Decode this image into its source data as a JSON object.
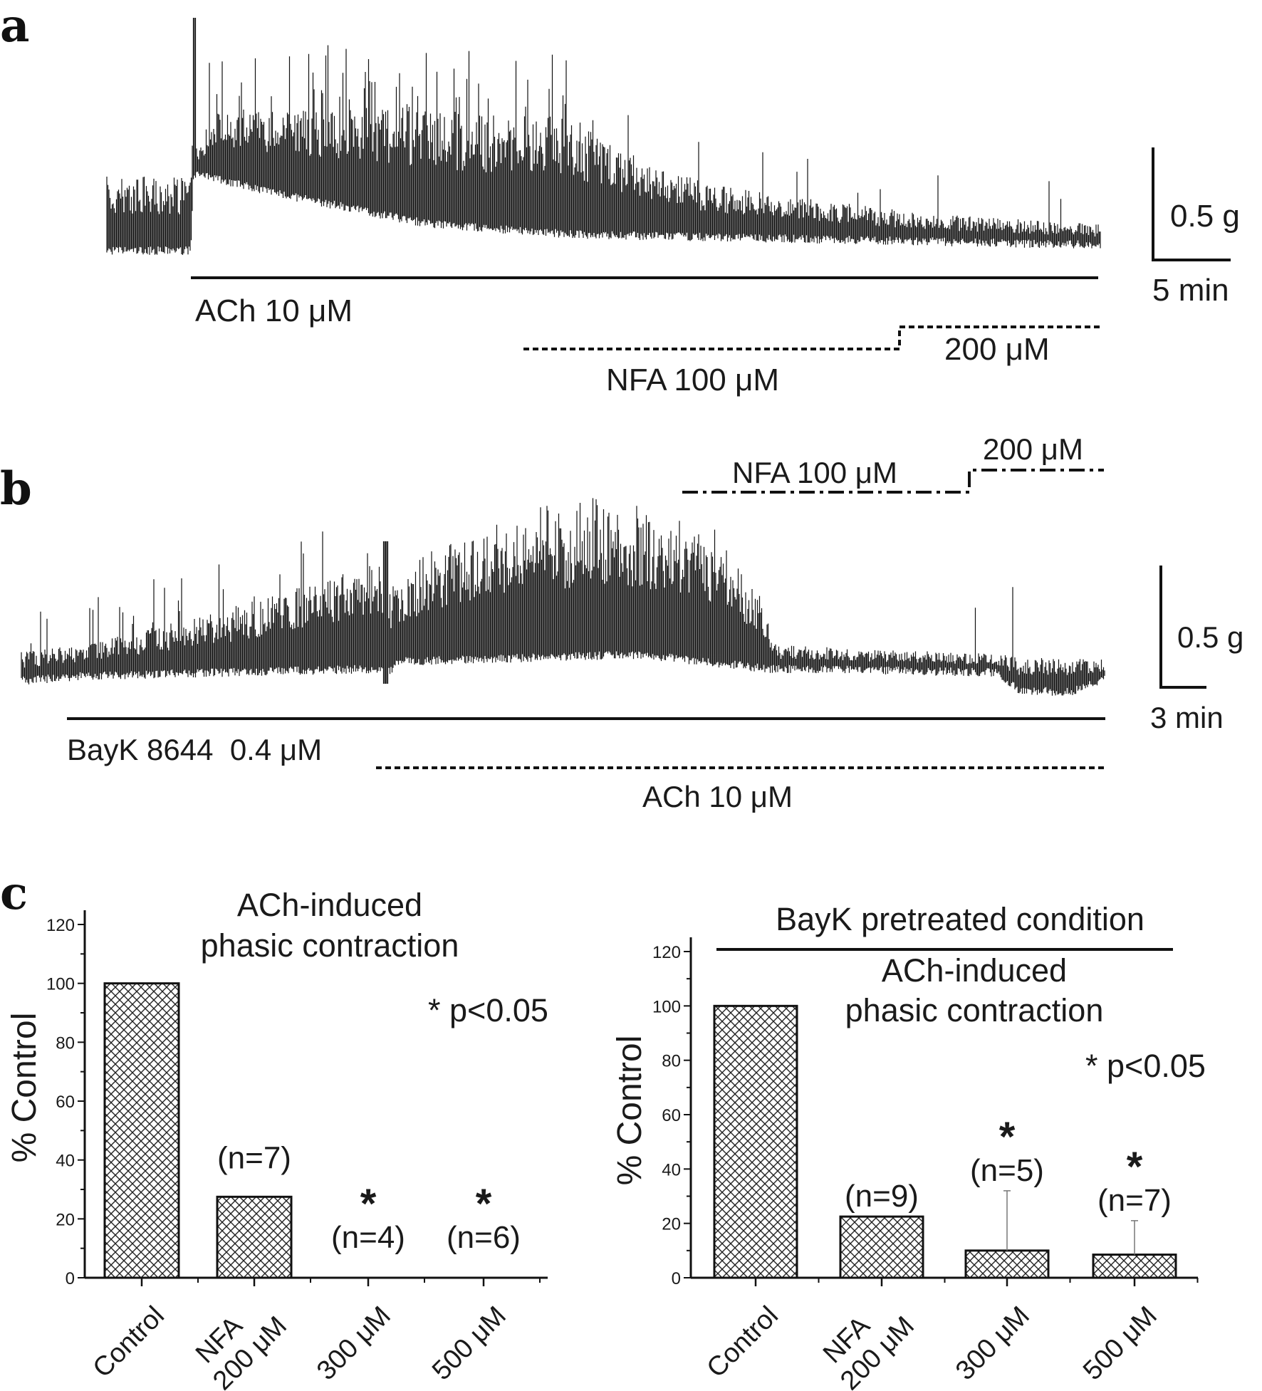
{
  "panel_a": {
    "label": "a",
    "ach_label": "ACh 10 μM",
    "nfa_label": "NFA 100 μM",
    "nfa_high_label": "200 μM",
    "scale_y": "0.5 g",
    "scale_x": "5 min"
  },
  "panel_b": {
    "label": "b",
    "bayk_label": "BayK 8644  0.4 μM",
    "ach_label": "ACh 10 μM",
    "nfa_label": "NFA 100 μM",
    "nfa_high_label": "200 μM",
    "scale_y": "0.5 g",
    "scale_x": "3 min"
  },
  "panel_c": {
    "label": "c"
  },
  "chart_data": [
    {
      "type": "bar",
      "title": "ACh-induced phasic contraction",
      "title_lines": [
        "ACh-induced",
        "phasic contraction"
      ],
      "ylabel": "% Control",
      "xlabel": "",
      "ylim": [
        0,
        120
      ],
      "yticks": [
        "0",
        "20",
        "40",
        "60",
        "80",
        "100",
        "120"
      ],
      "categories": [
        [
          "Control"
        ],
        [
          "NFA",
          "200 μM"
        ],
        [
          "300 μM"
        ],
        [
          "500 μM"
        ]
      ],
      "values": [
        100,
        27.5,
        0,
        0
      ],
      "error_upper": [
        null,
        null,
        null,
        null
      ],
      "n_labels": [
        "",
        "(n=7)",
        "(n=4)",
        "(n=6)"
      ],
      "significance": [
        false,
        false,
        true,
        true
      ],
      "legend_note": "* p<0.05",
      "fill_pattern": "crosshatch"
    },
    {
      "type": "bar",
      "supertitle": "BayK pretreated condition",
      "title": "ACh-induced phasic contraction",
      "title_lines": [
        "ACh-induced",
        "phasic contraction"
      ],
      "ylabel": "% Control",
      "xlabel": "",
      "ylim": [
        0,
        120
      ],
      "yticks": [
        "0",
        "20",
        "40",
        "60",
        "80",
        "100",
        "120"
      ],
      "categories": [
        [
          "Control"
        ],
        [
          "NFA",
          "200 μM"
        ],
        [
          "300 μM"
        ],
        [
          "500 μM"
        ]
      ],
      "values": [
        100,
        22.5,
        10,
        8.5
      ],
      "error_upper": [
        null,
        null,
        32,
        21
      ],
      "n_labels": [
        "",
        "(n=9)",
        "(n=5)",
        "(n=7)"
      ],
      "significance": [
        false,
        false,
        true,
        true
      ],
      "legend_note": "* p<0.05",
      "fill_pattern": "crosshatch"
    }
  ]
}
